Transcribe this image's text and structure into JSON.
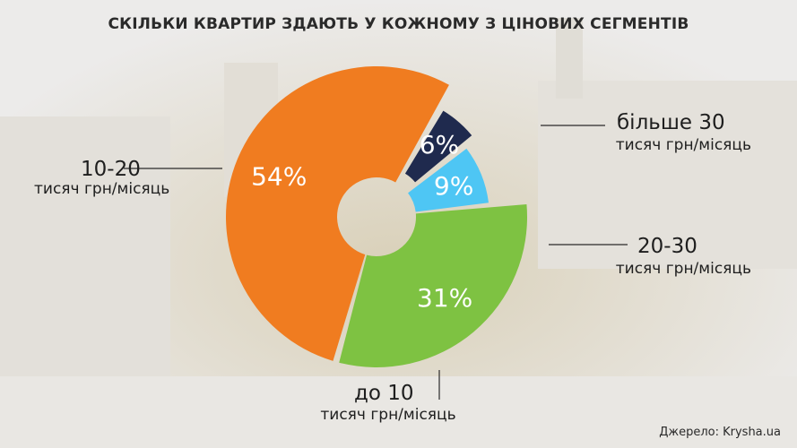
{
  "title": "СКІЛЬКИ КВАРТИР ЗДАЮТЬ У КОЖНОМУ З ЦІНОВИХ СЕГМЕНТІВ",
  "source": "Джерело: Krysha.ua",
  "labels": {
    "seg_10_20": {
      "line1": "10-20",
      "line2": "тисяч грн/місяць"
    },
    "seg_over_30": {
      "line1": "більше 30",
      "line2": "тисяч грн/місяць"
    },
    "seg_20_30": {
      "line1": "20-30",
      "line2": "тисяч грн/місяць"
    },
    "seg_to_10": {
      "line1": "до 10",
      "line2": "тисяч грн/місяць"
    }
  },
  "chart_data": {
    "type": "pie",
    "title": "СКІЛЬКИ КВАРТИР ЗДАЮТЬ У КОЖНОМУ З ЦІНОВИХ СЕГМЕНТІВ",
    "unit": "%",
    "legend": "none",
    "slices": [
      {
        "category": "більше 30 тисяч грн/місяць",
        "value": 6,
        "label": "6%",
        "color": "#1f2a4e"
      },
      {
        "category": "20-30 тисяч грн/місяць",
        "value": 9,
        "label": "9%",
        "color": "#4ec6f4"
      },
      {
        "category": "до 10 тисяч грн/місяць",
        "value": 31,
        "label": "31%",
        "color": "#7ec242"
      },
      {
        "category": "10-20 тисяч грн/місяць",
        "value": 54,
        "label": "54%",
        "color": "#f07c20"
      }
    ]
  }
}
